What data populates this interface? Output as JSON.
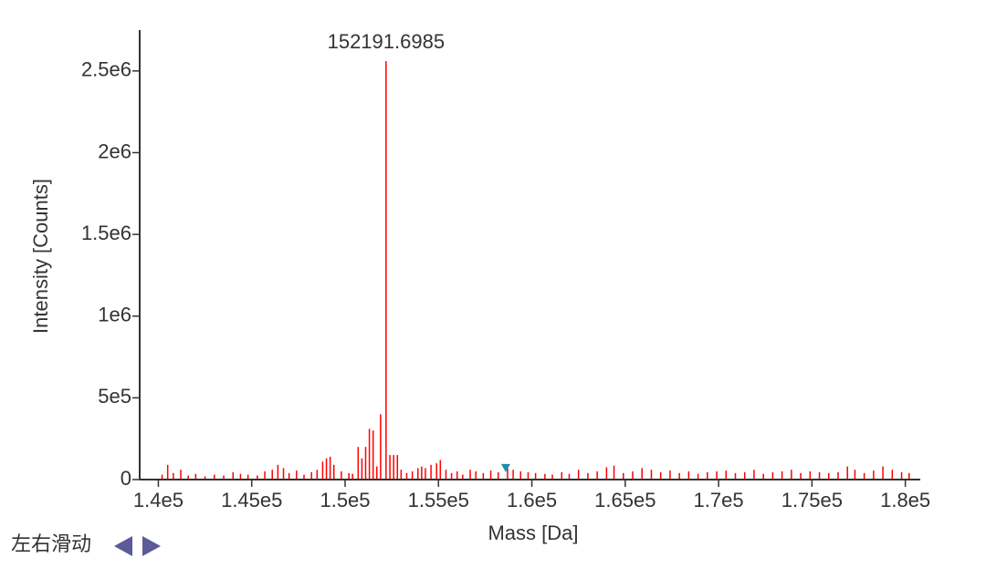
{
  "chart_data": {
    "type": "stem",
    "xlabel": "Mass [Da]",
    "ylabel": "Intensity [Counts]",
    "annotation": "152191.6985",
    "color": "#ff0000",
    "xlim": [
      139000,
      180800
    ],
    "ylim": [
      0,
      2750000
    ],
    "xticks": [
      {
        "value": 140000,
        "label": "1.4e5"
      },
      {
        "value": 145000,
        "label": "1.45e5"
      },
      {
        "value": 150000,
        "label": "1.5e5"
      },
      {
        "value": 155000,
        "label": "1.55e5"
      },
      {
        "value": 160000,
        "label": "1.6e5"
      },
      {
        "value": 165000,
        "label": "1.65e5"
      },
      {
        "value": 170000,
        "label": "1.7e5"
      },
      {
        "value": 175000,
        "label": "1.75e5"
      },
      {
        "value": 180000,
        "label": "1.8e5"
      }
    ],
    "yticks": [
      0,
      {
        "value": 500000,
        "label": "5e5"
      },
      {
        "value": 1000000,
        "label": "1e6"
      },
      {
        "value": 1500000,
        "label": "1.5e6"
      },
      {
        "value": 2000000,
        "label": "2e6"
      },
      {
        "value": 2500000,
        "label": "2.5e6"
      }
    ],
    "x": [
      140200,
      140500,
      140800,
      141200,
      141600,
      142000,
      142500,
      143000,
      143500,
      144000,
      144400,
      144800,
      145300,
      145700,
      146100,
      146400,
      146700,
      147000,
      147400,
      147800,
      148200,
      148500,
      148800,
      149000,
      149200,
      149400,
      149800,
      150200,
      150400,
      150700,
      150900,
      151100,
      151300,
      151500,
      151700,
      151900,
      152191.6985,
      152400,
      152600,
      152800,
      153000,
      153300,
      153600,
      153900,
      154100,
      154300,
      154600,
      154900,
      155100,
      155400,
      155700,
      156000,
      156300,
      156700,
      157000,
      157400,
      157800,
      158200,
      158700,
      159000,
      159400,
      159800,
      160200,
      160700,
      161100,
      161600,
      162000,
      162500,
      163000,
      163500,
      164000,
      164400,
      164900,
      165400,
      165900,
      166400,
      166900,
      167400,
      167900,
      168400,
      168900,
      169400,
      169900,
      170400,
      170900,
      171400,
      171900,
      172400,
      172900,
      173400,
      173900,
      174400,
      174900,
      175400,
      175900,
      176400,
      176900,
      177300,
      177800,
      178300,
      178800,
      179300,
      179800,
      180200
    ],
    "values": [
      30000,
      90000,
      40000,
      60000,
      25000,
      35000,
      20000,
      30000,
      25000,
      45000,
      35000,
      30000,
      25000,
      50000,
      60000,
      90000,
      70000,
      40000,
      55000,
      30000,
      45000,
      60000,
      110000,
      130000,
      140000,
      90000,
      50000,
      40000,
      35000,
      200000,
      130000,
      200000,
      310000,
      300000,
      80000,
      400000,
      2560000,
      150000,
      150000,
      150000,
      60000,
      40000,
      50000,
      70000,
      80000,
      70000,
      90000,
      100000,
      120000,
      60000,
      40000,
      50000,
      30000,
      60000,
      50000,
      40000,
      55000,
      45000,
      70000,
      60000,
      50000,
      45000,
      40000,
      35000,
      30000,
      45000,
      35000,
      60000,
      40000,
      50000,
      75000,
      85000,
      40000,
      50000,
      70000,
      60000,
      45000,
      55000,
      40000,
      50000,
      35000,
      45000,
      50000,
      55000,
      40000,
      45000,
      60000,
      35000,
      45000,
      50000,
      60000,
      40000,
      50000,
      45000,
      40000,
      45000,
      80000,
      60000,
      40000,
      55000,
      80000,
      60000,
      45000,
      40000
    ],
    "marker": {
      "x": 158600,
      "y": 73000,
      "color": "#1f8fa8"
    }
  },
  "controls": {
    "label": "左右滑动",
    "color": "#5b5b97"
  }
}
